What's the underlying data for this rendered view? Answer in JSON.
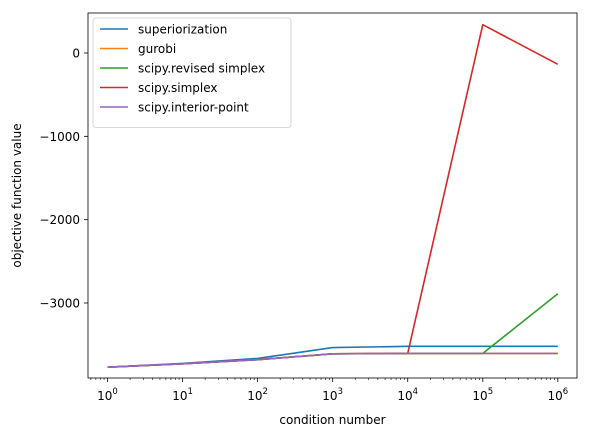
{
  "chart_data": {
    "type": "line",
    "title": "",
    "xlabel": "condition number",
    "ylabel": "objective function value",
    "xscale": "log",
    "x": [
      1,
      10,
      100,
      1000,
      10000,
      100000,
      1000000
    ],
    "xlim": [
      0.55,
      1800000
    ],
    "ylim": [
      -3900,
      480
    ],
    "grid": false,
    "legend_position": "upper-left",
    "xticks": [
      {
        "value": 1,
        "base": "10",
        "exp": "0"
      },
      {
        "value": 10,
        "base": "10",
        "exp": "1"
      },
      {
        "value": 100,
        "base": "10",
        "exp": "2"
      },
      {
        "value": 1000,
        "base": "10",
        "exp": "3"
      },
      {
        "value": 10000,
        "base": "10",
        "exp": "4"
      },
      {
        "value": 100000,
        "base": "10",
        "exp": "5"
      },
      {
        "value": 1000000,
        "base": "10",
        "exp": "6"
      }
    ],
    "yticks": [
      {
        "value": 0,
        "label": "0"
      },
      {
        "value": -1000,
        "label": "−1000"
      },
      {
        "value": -2000,
        "label": "−2000"
      },
      {
        "value": -3000,
        "label": "−3000"
      }
    ],
    "series": [
      {
        "name": "superiorization",
        "color": "#1f77b4",
        "values": [
          -3770,
          -3725,
          -3665,
          -3535,
          -3520,
          -3520,
          -3520
        ]
      },
      {
        "name": "gurobi",
        "color": "#ff7f0e",
        "values": [
          -3770,
          -3730,
          -3680,
          -3610,
          -3605,
          -3605,
          -3605
        ]
      },
      {
        "name": "scipy.revised simplex",
        "color": "#2ca02c",
        "values": [
          -3770,
          -3730,
          -3680,
          -3610,
          -3605,
          -3605,
          -2890
        ]
      },
      {
        "name": "scipy.simplex",
        "color": "#d62728",
        "values": [
          -3770,
          -3730,
          -3680,
          -3610,
          -3605,
          340,
          -135
        ]
      },
      {
        "name": "scipy.interior-point",
        "color": "#9467bd",
        "values": [
          -3770,
          -3730,
          -3680,
          -3610,
          -3605,
          -3605,
          -3605
        ]
      }
    ]
  }
}
